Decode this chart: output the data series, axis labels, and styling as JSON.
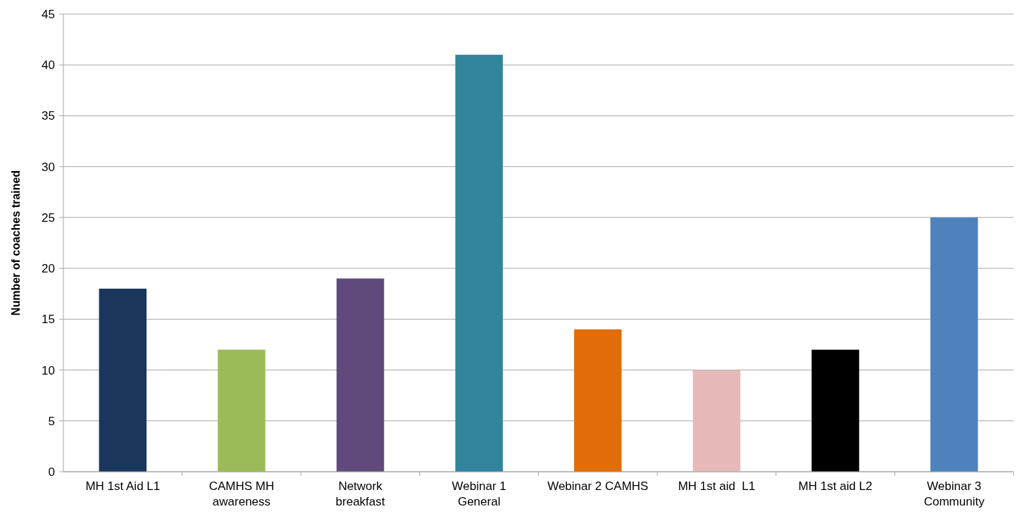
{
  "chart_data": {
    "type": "bar",
    "ylabel": "Number of coaches trained",
    "categories": [
      "MH 1st Aid L1",
      "CAMHS MH awareness",
      "Network breakfast",
      "Webinar 1 General",
      "Webinar 2 CAMHS",
      "MH 1st aid  L1",
      "MH 1st aid L2",
      "Webinar 3 Community"
    ],
    "values": [
      18,
      12,
      19,
      41,
      14,
      10,
      12,
      25
    ],
    "colors": [
      "#1b365d",
      "#9bbb59",
      "#604a7b",
      "#31849b",
      "#e36c0a",
      "#e6b9b8",
      "#000000",
      "#4f81bd"
    ],
    "ylim": [
      0,
      45
    ],
    "yticks": [
      0,
      5,
      10,
      15,
      20,
      25,
      30,
      35,
      40,
      45
    ],
    "grid": "y"
  }
}
